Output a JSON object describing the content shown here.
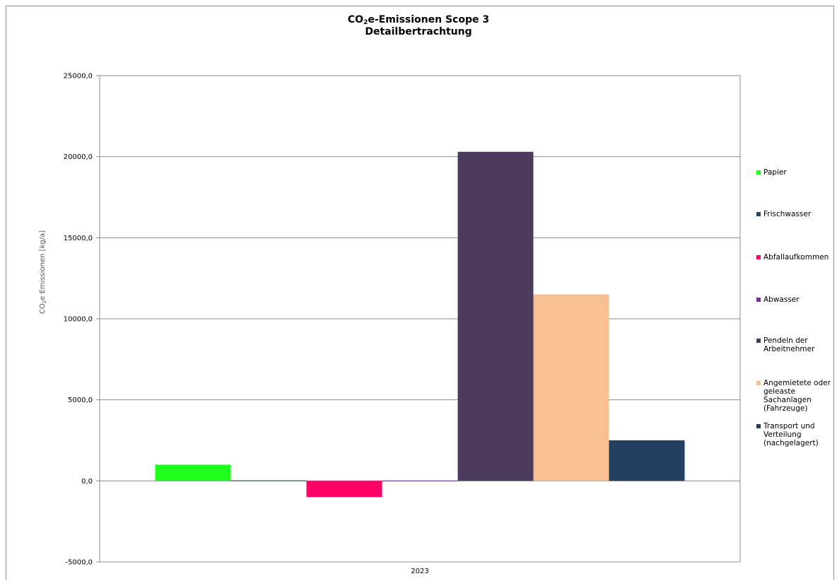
{
  "chart_data": {
    "type": "bar",
    "title_main": "CO",
    "title_sub": "2",
    "title_rest": "e-Emissionen Scope 3",
    "subtitle": "Detailbertrachtung",
    "ylabel_main": "CO",
    "ylabel_sub": "2",
    "ylabel_rest": "e Emissionen [kg/a]",
    "categories": [
      "2023"
    ],
    "ylim": [
      -5000,
      25000
    ],
    "yticks": [
      "-5000,0",
      "0,0",
      "5000,0",
      "10000,0",
      "15000,0",
      "20000,0",
      "25000,0"
    ],
    "grid": true,
    "legend_position": "right",
    "series": [
      {
        "name": "Papier",
        "values": [
          1000
        ],
        "color": "#1eff1e"
      },
      {
        "name": "Frischwasser",
        "values": [
          30
        ],
        "color": "#26476b"
      },
      {
        "name": "Abfallaufkommen",
        "values": [
          -1000
        ],
        "color": "#ff0066"
      },
      {
        "name": "Abwasser",
        "values": [
          20
        ],
        "color": "#7b2f99"
      },
      {
        "name": "Pendeln der\nArbeitnehmer",
        "values": [
          20300
        ],
        "color": "#4b3c5e"
      },
      {
        "name": "Angemietete oder\ngeleaste\nSachanlagen\n(Fahrzeuge)",
        "values": [
          11500
        ],
        "color": "#f8c090"
      },
      {
        "name": "Transport und\nVerteilung\n(nachgelagert)",
        "values": [
          2500
        ],
        "color": "#243f60"
      }
    ]
  }
}
